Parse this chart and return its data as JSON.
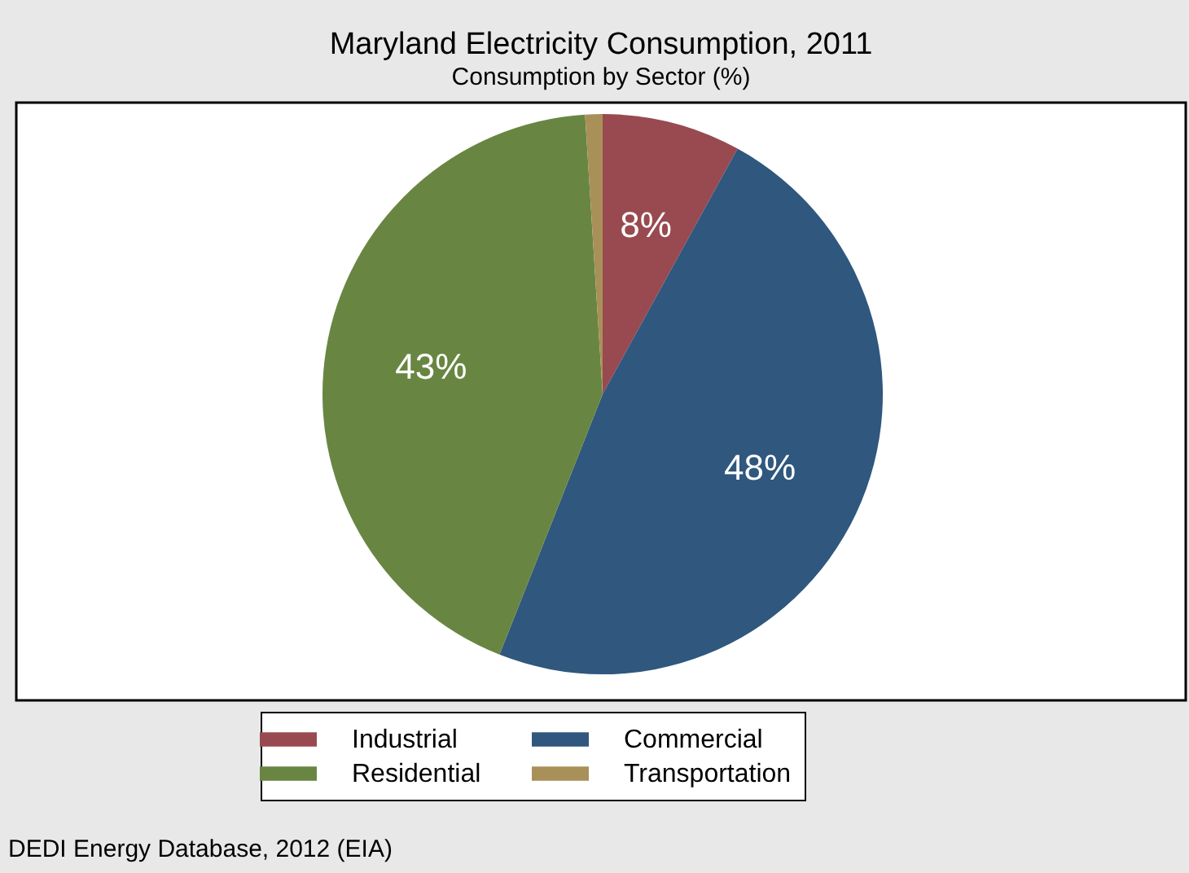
{
  "chart_data": {
    "type": "pie",
    "title": "Maryland Electricity Consumption, 2011",
    "subtitle": "Consumption by Sector (%)",
    "categories": [
      "Industrial",
      "Commercial",
      "Residential",
      "Transportation"
    ],
    "values": [
      8,
      48,
      43,
      1
    ],
    "colors": [
      "#984a50",
      "#30577d",
      "#688642",
      "#a89058"
    ],
    "value_labels": [
      "8%",
      "48%",
      "43%",
      null
    ],
    "legend": "bottom",
    "annotations": [
      "DEDI Energy Database, 2012  (EIA)"
    ]
  }
}
